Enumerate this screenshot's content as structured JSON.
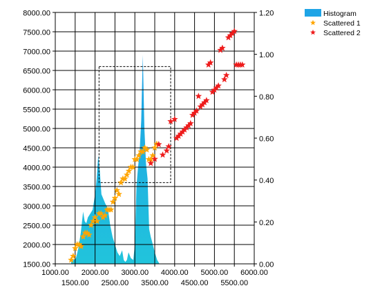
{
  "chart_data": {
    "type": "area",
    "grid": true,
    "legend_position": "top-right",
    "x_axis": {
      "range": [
        1000,
        6000
      ],
      "ticks_row1": [
        "1000.00",
        "2000.00",
        "3000.00",
        "4000.00",
        "5000.00",
        "6000.00"
      ],
      "ticks_row2": [
        "1500.00",
        "2500.00",
        "3500.00",
        "4500.00",
        "5500.00"
      ]
    },
    "y_axis_left": {
      "range": [
        1500,
        8000
      ],
      "ticks": [
        "8000.00",
        "7500.00",
        "7000.00",
        "6500.00",
        "6000.00",
        "5500.00",
        "5000.00",
        "4500.00",
        "4000.00",
        "3500.00",
        "3000.00",
        "2500.00",
        "2000.00",
        "1500.00"
      ]
    },
    "y_axis_right": {
      "range": [
        0,
        1.2
      ],
      "ticks": [
        "1.20",
        "1.00",
        "0.80",
        "0.60",
        "0.40",
        "0.20",
        "0.00"
      ]
    },
    "selection_box": {
      "x": [
        2100,
        3900
      ],
      "y": [
        3600,
        6600
      ]
    },
    "series": [
      {
        "name": "Histogram",
        "type": "area",
        "axis": "left",
        "color_top": "#1e9fe6",
        "color_bottom": "#20c8d8",
        "x": [
          1400,
          1460,
          1520,
          1580,
          1640,
          1700,
          1740,
          1780,
          1820,
          1880,
          1940,
          2000,
          2040,
          2080,
          2120,
          2160,
          2200,
          2260,
          2320,
          2380,
          2440,
          2500,
          2560,
          2620,
          2680,
          2720,
          2760,
          2800,
          2840,
          2900,
          2960,
          3000,
          3040,
          3080,
          3120,
          3160,
          3200,
          3240,
          3280,
          3320,
          3360,
          3400,
          3440,
          3500,
          3560,
          3620,
          3680,
          3740,
          3800
        ],
        "values": [
          1550,
          1600,
          1650,
          1900,
          2300,
          2850,
          2600,
          2550,
          2700,
          2800,
          2900,
          3300,
          3700,
          4300,
          3900,
          3300,
          3200,
          3050,
          2950,
          2500,
          2200,
          2000,
          1800,
          1700,
          1850,
          1600,
          1550,
          1600,
          1800,
          1650,
          1600,
          2000,
          3500,
          4000,
          4400,
          5200,
          6900,
          5000,
          4100,
          3700,
          2400,
          2200,
          2050,
          1800,
          1600,
          1500,
          1500,
          1500,
          1500
        ]
      },
      {
        "name": "Scattered 1",
        "type": "scatter",
        "axis": "left",
        "color": "#ffa500",
        "x": [
          1400,
          1450,
          1500,
          1550,
          1600,
          1650,
          1700,
          1750,
          1800,
          1850,
          1900,
          1950,
          2000,
          2050,
          2100,
          2150,
          2200,
          2250,
          2300,
          2350,
          2400,
          2450,
          2500,
          2550,
          2600,
          2650,
          2700,
          2750,
          2800,
          2850,
          2900,
          2950,
          3000,
          3050,
          3100,
          3150,
          3200,
          3250,
          3300,
          3350,
          3400,
          3450,
          3500,
          3550
        ],
        "values": [
          1600,
          1700,
          1900,
          2000,
          2000,
          1950,
          2200,
          2300,
          2300,
          2250,
          2500,
          2600,
          2700,
          2600,
          2800,
          2800,
          2700,
          2750,
          2900,
          2900,
          2900,
          3100,
          3200,
          3400,
          3300,
          3600,
          3700,
          3700,
          3800,
          3900,
          4000,
          4000,
          4200,
          4200,
          4300,
          4400,
          4400,
          4500,
          4450,
          4200,
          4200,
          4300,
          4500,
          4600
        ]
      },
      {
        "name": "Scattered 2",
        "type": "scatter",
        "axis": "right",
        "color": "#ee1c1c",
        "x": [
          3400,
          3500,
          3600,
          3700,
          3800,
          3850,
          3900,
          4000,
          4050,
          4100,
          4150,
          4200,
          4250,
          4300,
          4350,
          4400,
          4450,
          4500,
          4550,
          4600,
          4650,
          4700,
          4750,
          4800,
          4850,
          4900,
          4950,
          5000,
          5050,
          5100,
          5150,
          5200,
          5250,
          5300,
          5350,
          5400,
          5450,
          5500,
          5550,
          5600,
          5650,
          5700
        ],
        "values": [
          0.48,
          0.5,
          0.57,
          0.52,
          0.54,
          0.56,
          0.68,
          0.69,
          0.6,
          0.61,
          0.62,
          0.63,
          0.64,
          0.65,
          0.66,
          0.67,
          0.71,
          0.72,
          0.73,
          0.8,
          0.75,
          0.76,
          0.77,
          0.78,
          0.95,
          0.96,
          0.82,
          0.83,
          0.84,
          0.85,
          1.02,
          1.03,
          0.88,
          0.9,
          1.08,
          1.09,
          1.1,
          1.11,
          0.95,
          0.95,
          0.95,
          0.95
        ]
      }
    ]
  }
}
